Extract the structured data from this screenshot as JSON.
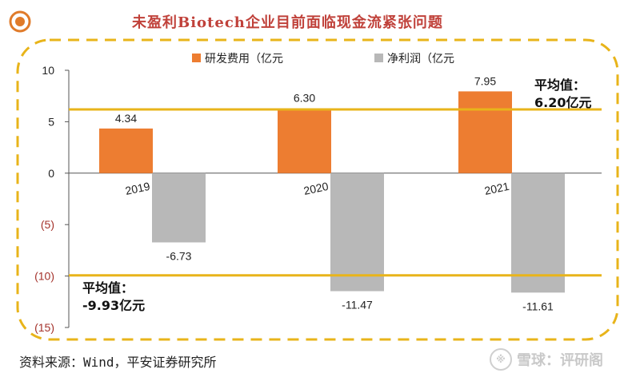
{
  "title": "未盈利Biotech企业目前面临现金流紧张问题",
  "source": "资料来源：Wind，平安证券研究所",
  "watermark": "雪球：评研阁",
  "avg_labels": {
    "rd": "平均值：\n6.20亿元",
    "net_profit": "平均值：\n-9.93亿元"
  },
  "colors": {
    "rd": "#ed7d31",
    "net_profit": "#b8b8b8",
    "avg_line": "#e8b41a",
    "frame": "#e8b41a",
    "title": "#c0413a"
  },
  "chart_data": {
    "type": "bar",
    "title": "未盈利Biotech企业目前面临现金流紧张问题",
    "categories": [
      "2019",
      "2020",
      "2021"
    ],
    "series": [
      {
        "name": "研发费用（亿元",
        "values": [
          4.34,
          6.3,
          7.95
        ],
        "labels": [
          "4.34",
          "6.30",
          "7.95"
        ]
      },
      {
        "name": "净利润（亿元",
        "values": [
          -6.73,
          -11.47,
          -11.61
        ],
        "labels": [
          "-6.73",
          "-11.47",
          "-11.61"
        ]
      }
    ],
    "reference_lines": [
      {
        "value": 6.2
      },
      {
        "value": -9.93
      }
    ],
    "yticks": [
      10,
      5,
      0,
      -5,
      -10,
      -15
    ],
    "ytick_labels": [
      "10",
      "5",
      "0",
      "(5)",
      "(10)",
      "(15)"
    ],
    "ylim": [
      -15,
      10
    ],
    "legend_position": "top"
  }
}
